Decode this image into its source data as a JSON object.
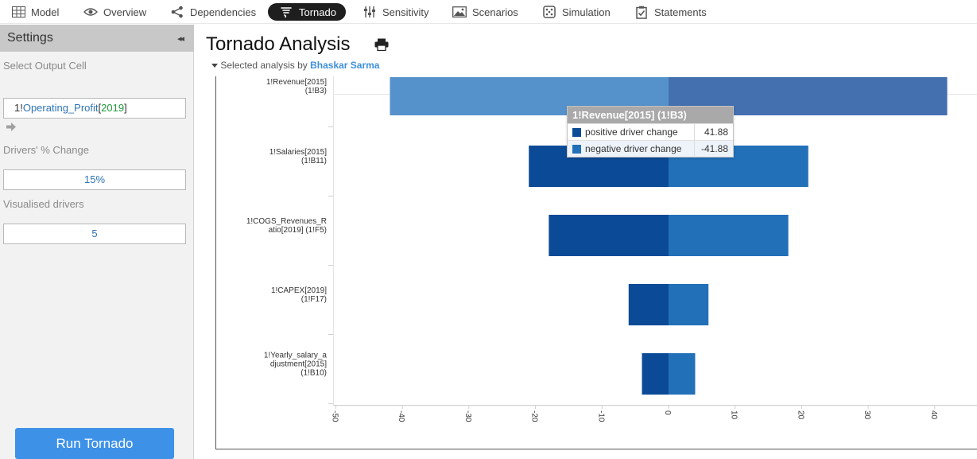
{
  "nav": {
    "items": [
      {
        "label": "Model",
        "icon": "grid-icon"
      },
      {
        "label": "Overview",
        "icon": "eye-icon"
      },
      {
        "label": "Dependencies",
        "icon": "share-icon"
      },
      {
        "label": "Tornado",
        "icon": "tornado-icon",
        "active": true
      },
      {
        "label": "Sensitivity",
        "icon": "sliders-icon"
      },
      {
        "label": "Scenarios",
        "icon": "image-icon"
      },
      {
        "label": "Simulation",
        "icon": "dice-icon"
      },
      {
        "label": "Statements",
        "icon": "clipboard-check-icon"
      }
    ]
  },
  "sidebar": {
    "title": "Settings",
    "collapse": "◂◂",
    "output_label": "Select Output Cell",
    "output_cell": {
      "prefix": "1!",
      "name": "Operating_Profit",
      "bracket_open": "[",
      "year": "2019",
      "bracket_close": "]"
    },
    "drivers_change_label": "Drivers' % Change",
    "drivers_change_value": "15%",
    "visualised_label": "Visualised drivers",
    "visualised_value": "5",
    "run_button": "Run Tornado"
  },
  "main": {
    "title": "Tornado Analysis",
    "subtitle_prefix": "Selected analysis by",
    "author": "Bhaskar Sarma"
  },
  "colors": {
    "negative": "#0b4a96",
    "positive": "#2270b8",
    "highlight_negative": "#5592cc",
    "highlight_positive": "#4470b0",
    "accent": "#3d92e8"
  },
  "chart_data": {
    "type": "bar",
    "orientation": "horizontal-tornado",
    "categories": [
      [
        "1!Revenue[2015]",
        "(1!B3)"
      ],
      [
        "1!Salaries[2015]",
        "(1!B11)"
      ],
      [
        "1!COGS_Revenues_R",
        "atio[2019] (1!F5)"
      ],
      [
        "1!CAPEX[2019]",
        "(1!F17)"
      ],
      [
        "1!Yearly_salary_a",
        "djustment[2015]",
        "(1!B10)"
      ]
    ],
    "series": [
      {
        "name": "negative driver change",
        "values": [
          -41.88,
          -21,
          -18,
          -6,
          -4
        ]
      },
      {
        "name": "positive driver change",
        "values": [
          41.88,
          21,
          18,
          6,
          4
        ]
      }
    ],
    "xlim": [
      -50,
      47
    ],
    "xticks": [
      -50,
      -40,
      -30,
      -20,
      -10,
      0,
      10,
      20,
      30,
      40
    ],
    "highlight_index": 0
  },
  "tooltip": {
    "title": "1!Revenue[2015] (1!B3)",
    "rows": [
      {
        "label": "positive driver change",
        "value": "41.88"
      },
      {
        "label": "negative driver change",
        "value": "-41.88"
      }
    ]
  }
}
